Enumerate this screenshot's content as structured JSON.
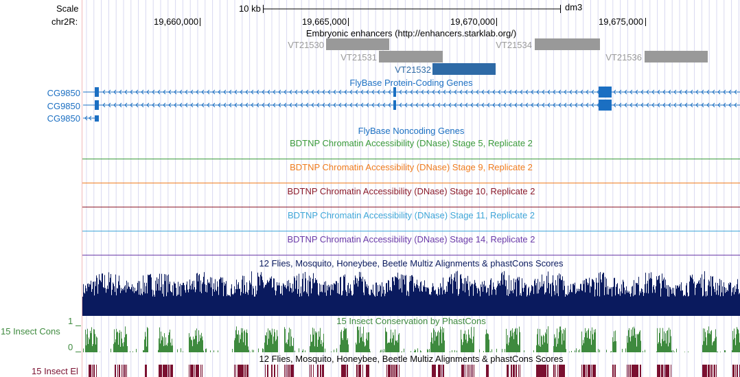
{
  "ruler": {
    "scale_label": "Scale",
    "chrom_label": "chr2R:",
    "scale_bar_label": "10 kb",
    "assembly": "dm3",
    "ticks": [
      "19,660,000",
      "19,665,000",
      "19,670,000",
      "19,675,000"
    ]
  },
  "enhancers": {
    "title": "Embryonic enhancers (http://enhancers.starklab.org/)",
    "items": [
      {
        "name": "VT21530",
        "color": "#999999"
      },
      {
        "name": "VT21531",
        "color": "#999999"
      },
      {
        "name": "VT21532",
        "color": "#2e6aa6"
      },
      {
        "name": "VT21534",
        "color": "#999999"
      },
      {
        "name": "VT21536",
        "color": "#999999"
      }
    ]
  },
  "protein_genes": {
    "title": "FlyBase Protein-Coding Genes",
    "color": "#1b6fc2",
    "transcripts": [
      "CG9850",
      "CG9850",
      "CG9850"
    ]
  },
  "noncoding": {
    "title": "FlyBase Noncoding Genes",
    "color": "#1b6fc2"
  },
  "dnase_tracks": [
    {
      "title": "BDTNP Chromatin Accessibility (DNase) Stage 5, Replicate 2",
      "color": "#3a9a3a"
    },
    {
      "title": "BDTNP Chromatin Accessibility (DNase) Stage 9, Replicate 2",
      "color": "#f07c1e"
    },
    {
      "title": "BDTNP Chromatin Accessibility (DNase) Stage 10, Replicate 2",
      "color": "#8b1a2a"
    },
    {
      "title": "BDTNP Chromatin Accessibility (DNase) Stage 11, Replicate 2",
      "color": "#3fa6d8"
    },
    {
      "title": "BDTNP Chromatin Accessibility (DNase) Stage 14, Replicate 2",
      "color": "#6a3aa8"
    }
  ],
  "multiz": {
    "title": "12 Flies, Mosquito, Honeybee, Beetle Multiz Alignments & phastCons Scores",
    "color": "#0a1a5e"
  },
  "phastcons": {
    "title": "15 Insect Conservation by PhastCons",
    "side_label": "15 Insect Cons",
    "y_max": "1",
    "y_min": "0",
    "color": "#3e8a3e"
  },
  "elements": {
    "title": "12 Flies, Mosquito, Honeybee, Beetle Multiz Alignments & phastCons Scores",
    "side_label": "15 Insect El",
    "color": "#7a1030"
  }
}
